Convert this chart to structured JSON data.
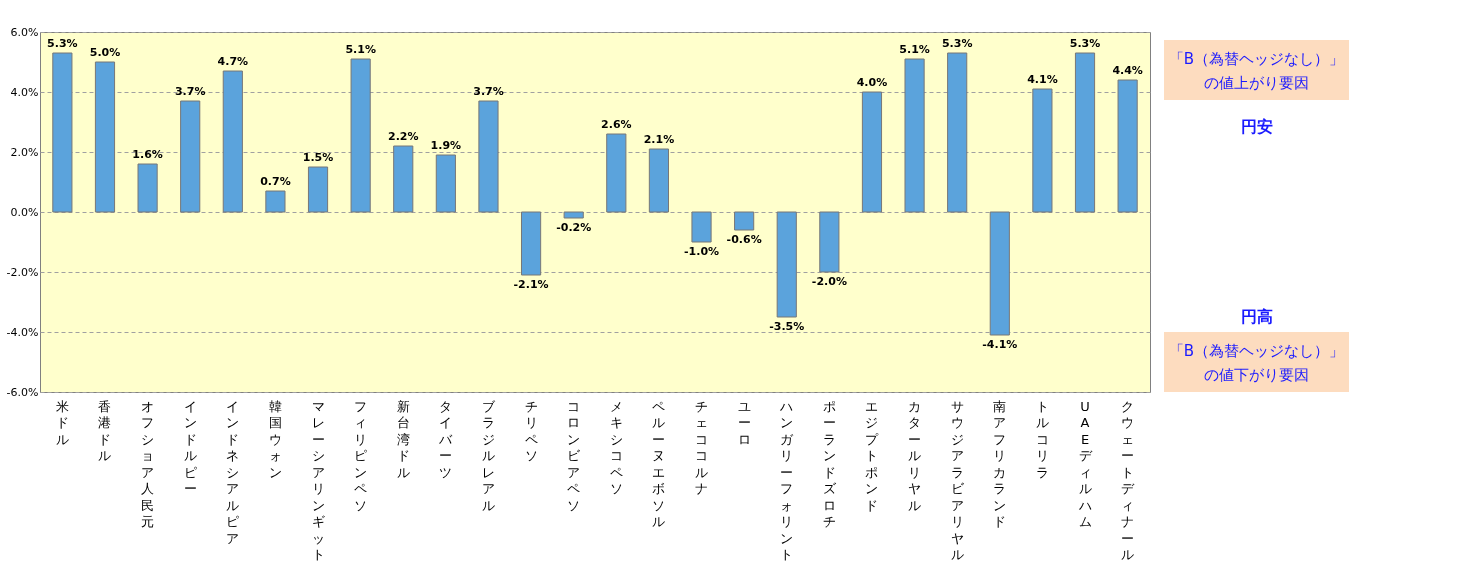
{
  "chart_data": {
    "type": "bar",
    "categories": [
      "米ドル",
      "香港ドル",
      "オフショア人民元",
      "インドルピー",
      "インドネシアルピア",
      "韓国ウォン",
      "マレーシアリンギット",
      "フィリピンペソ",
      "新台湾ドル",
      "タイバーツ",
      "ブラジルレアル",
      "チリペソ",
      "コロンビアペソ",
      "メキシコペソ",
      "ペルーヌエボソル",
      "チェココルナ",
      "ユーロ",
      "ハンガリーフォリント",
      "ポーランドズロチ",
      "エジプトポンド",
      "カタールリヤル",
      "サウジアラビアリヤル",
      "南アフリカランド",
      "トルコリラ",
      "UAEディルハム",
      "クウェートディナール"
    ],
    "values": [
      5.3,
      5.0,
      1.6,
      3.7,
      4.7,
      0.7,
      1.5,
      5.1,
      2.2,
      1.9,
      3.7,
      -2.1,
      -0.2,
      2.6,
      2.1,
      -1.0,
      -0.6,
      -3.5,
      -2.0,
      4.0,
      5.1,
      5.3,
      -4.1,
      4.1,
      5.3,
      4.4
    ],
    "value_labels": [
      "5.3%",
      "5.0%",
      "1.6%",
      "3.7%",
      "4.7%",
      "0.7%",
      "1.5%",
      "5.1%",
      "2.2%",
      "1.9%",
      "3.7%",
      "-2.1%",
      "-0.2%",
      "2.6%",
      "2.1%",
      "-1.0%",
      "-0.6%",
      "-3.5%",
      "-2.0%",
      "4.0%",
      "5.1%",
      "5.3%",
      "-4.1%",
      "4.1%",
      "5.3%",
      "4.4%"
    ],
    "color": "#5ba3dc",
    "ylim": [
      -6,
      6
    ],
    "yticks": [
      {
        "value": 6,
        "label": "6.0%"
      },
      {
        "value": 4,
        "label": "4.0%"
      },
      {
        "value": 2,
        "label": "2.0%"
      },
      {
        "value": 0,
        "label": "0.0%"
      },
      {
        "value": -2,
        "label": "-2.0%"
      },
      {
        "value": -4,
        "label": "-4.0%"
      },
      {
        "value": -6,
        "label": "-6.0%"
      }
    ],
    "grid": "y",
    "annotations": [
      "「B（為替ヘッジなし）」",
      "の値上がり要因",
      "円安",
      "円高",
      "「B（為替ヘッジなし）」",
      "の値下がり要因"
    ]
  }
}
